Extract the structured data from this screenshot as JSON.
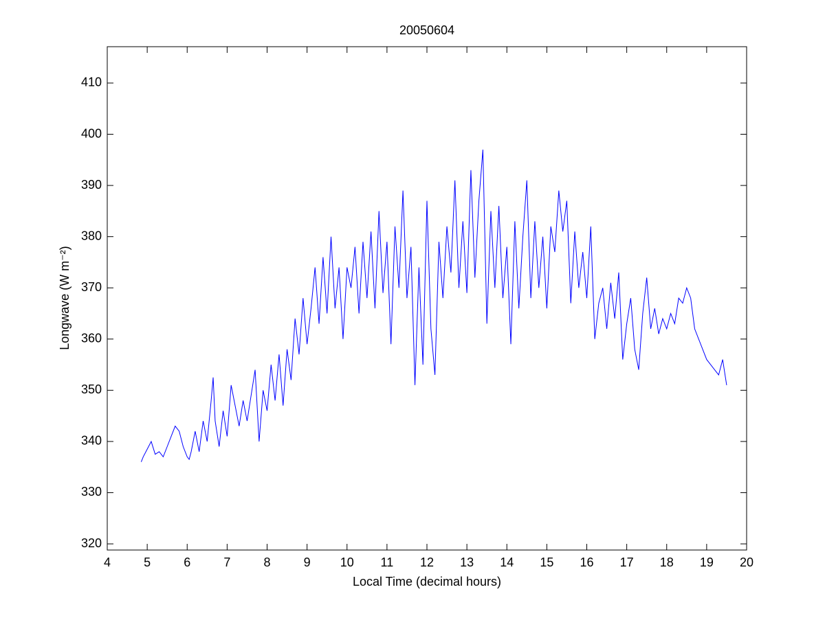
{
  "chart_data": {
    "type": "line",
    "title": "20050604",
    "xlabel": "Local Time (decimal hours)",
    "ylabel": "Longwave (W m⁻²)",
    "color": "#0000ff",
    "x": [
      4.85,
      4.9,
      5.0,
      5.1,
      5.2,
      5.3,
      5.4,
      5.5,
      5.6,
      5.7,
      5.8,
      5.9,
      6.0,
      6.05,
      6.1,
      6.2,
      6.3,
      6.4,
      6.5,
      6.6,
      6.65,
      6.7,
      6.8,
      6.9,
      7.0,
      7.1,
      7.2,
      7.3,
      7.4,
      7.5,
      7.6,
      7.7,
      7.8,
      7.9,
      8.0,
      8.1,
      8.2,
      8.3,
      8.4,
      8.5,
      8.6,
      8.7,
      8.8,
      8.9,
      9.0,
      9.1,
      9.2,
      9.3,
      9.4,
      9.5,
      9.6,
      9.7,
      9.8,
      9.9,
      10.0,
      10.1,
      10.2,
      10.3,
      10.4,
      10.5,
      10.6,
      10.7,
      10.8,
      10.9,
      11.0,
      11.1,
      11.2,
      11.3,
      11.4,
      11.5,
      11.6,
      11.7,
      11.8,
      11.9,
      12.0,
      12.1,
      12.2,
      12.3,
      12.4,
      12.5,
      12.6,
      12.7,
      12.8,
      12.9,
      13.0,
      13.1,
      13.2,
      13.3,
      13.4,
      13.5,
      13.6,
      13.7,
      13.8,
      13.9,
      14.0,
      14.1,
      14.2,
      14.3,
      14.4,
      14.5,
      14.6,
      14.7,
      14.8,
      14.9,
      15.0,
      15.1,
      15.2,
      15.3,
      15.4,
      15.5,
      15.6,
      15.7,
      15.8,
      15.9,
      16.0,
      16.1,
      16.2,
      16.3,
      16.4,
      16.5,
      16.6,
      16.7,
      16.8,
      16.9,
      17.0,
      17.1,
      17.2,
      17.3,
      17.4,
      17.5,
      17.6,
      17.7,
      17.8,
      17.9,
      18.0,
      18.1,
      18.2,
      18.3,
      18.4,
      18.5,
      18.6,
      18.7,
      18.8,
      18.9,
      19.0,
      19.1,
      19.2,
      19.3,
      19.4,
      19.5
    ],
    "values": [
      336,
      337,
      338.5,
      340,
      337.5,
      338,
      337,
      339,
      341,
      343,
      342,
      339,
      337,
      336.5,
      338,
      342,
      338,
      344,
      340,
      348,
      352.5,
      344,
      339,
      346,
      341,
      351,
      347,
      343,
      348,
      344,
      349,
      354,
      340,
      350,
      346,
      355,
      348,
      357,
      347,
      358,
      352,
      364,
      357,
      368,
      359,
      366,
      374,
      363,
      376,
      365,
      380,
      366,
      374,
      360,
      374,
      370,
      378,
      365,
      379,
      368,
      381,
      366,
      385,
      369,
      379,
      359,
      382,
      370,
      389,
      368,
      378,
      351,
      374,
      355,
      387,
      362,
      353,
      379,
      368,
      382,
      373,
      391,
      370,
      383,
      369,
      393,
      372,
      387,
      397,
      363,
      385,
      370,
      386,
      368,
      378,
      359,
      383,
      366,
      380,
      391,
      368,
      383,
      370,
      380,
      366,
      382,
      377,
      389,
      381,
      387,
      367,
      381,
      370,
      377,
      368,
      382,
      360,
      367,
      370,
      362,
      371,
      364,
      373,
      356,
      363,
      368,
      358,
      354,
      365,
      372,
      362,
      366,
      361,
      364,
      362,
      365,
      363,
      368,
      367,
      370,
      368,
      362,
      360,
      358,
      356,
      355,
      354,
      353,
      356,
      351
    ],
    "xlim": [
      4,
      20
    ],
    "xticks": [
      4,
      5,
      6,
      7,
      8,
      9,
      10,
      11,
      12,
      13,
      14,
      15,
      16,
      17,
      18,
      19,
      20
    ],
    "ylim": [
      318.8,
      417.1
    ],
    "yticks": [
      320,
      330,
      340,
      350,
      360,
      370,
      380,
      390,
      400,
      410
    ],
    "grid": false
  }
}
